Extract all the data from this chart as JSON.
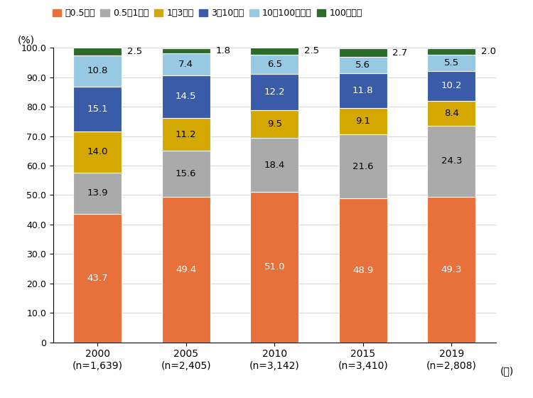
{
  "years": [
    "2000\n(n=1,639)",
    "2005\n(n=2,405)",
    "2010\n(n=3,142)",
    "2015\n(n=3,410)",
    "2019\n(n=2,808)"
  ],
  "categories": [
    "～0.5億円",
    "0.5～1億円",
    "1～3億円",
    "3～10億円",
    "10～100億円超",
    "100億円～"
  ],
  "values": [
    [
      43.7,
      13.9,
      14.0,
      15.1,
      10.8,
      2.5
    ],
    [
      49.4,
      15.6,
      11.2,
      14.5,
      7.4,
      1.8
    ],
    [
      51.0,
      18.4,
      9.5,
      12.2,
      6.5,
      2.5
    ],
    [
      48.9,
      21.6,
      9.1,
      11.8,
      5.6,
      2.7
    ],
    [
      49.3,
      24.3,
      8.4,
      10.2,
      5.5,
      2.0
    ]
  ],
  "colors": [
    "#E8703A",
    "#AAAAAA",
    "#D4A800",
    "#3A5CA8",
    "#97C9E3",
    "#2D6B2A"
  ],
  "text_colors": [
    "white",
    "black",
    "black",
    "white",
    "black",
    "white"
  ],
  "ylabel": "(%)",
  "xlabel": "(年)",
  "ylim": [
    0,
    100
  ],
  "yticks": [
    0,
    10,
    20,
    30,
    40,
    50,
    60,
    70,
    80,
    90,
    100
  ],
  "ytick_labels": [
    "0",
    "10.0",
    "20.0",
    "30.0",
    "40.0",
    "50.0",
    "60.0",
    "70.0",
    "80.0",
    "90.0",
    "100.0"
  ],
  "bar_width": 0.55,
  "legend_labels": [
    "～0.5億円",
    "0.5～1億円",
    "1～3億円",
    "3～10億円",
    "10～100億円超",
    "100億円～"
  ]
}
